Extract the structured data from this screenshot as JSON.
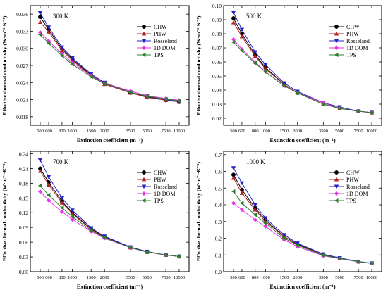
{
  "chart_data": [
    {
      "type": "line",
      "annotation": "300 K",
      "xlabel": "Extinction coefficient (m⁻¹)",
      "ylabel": "Effective thermal conductivity (W·m⁻¹·K⁻¹)",
      "x_scale": "log",
      "x": [
        500,
        600,
        800,
        1000,
        1500,
        2000,
        3500,
        5000,
        7500,
        10000
      ],
      "x_tick_labels": [
        "500",
        "600",
        "800",
        "1000",
        "1500",
        "2000",
        "3500",
        "5000",
        "7500",
        "10000"
      ],
      "ylim": [
        0.0165,
        0.0375
      ],
      "y_ticks": [
        "0.018",
        "0.021",
        "0.024",
        "0.027",
        "0.030",
        "0.033",
        "0.036"
      ],
      "legend_position": "top-right",
      "series": [
        {
          "name": "CHW",
          "color": "#000000",
          "marker": "circle",
          "values": [
            0.0355,
            0.0333,
            0.0299,
            0.0281,
            0.0253,
            0.0239,
            0.0222,
            0.0215,
            0.0209,
            0.0206
          ]
        },
        {
          "name": "PHW",
          "color": "#b22222",
          "marker": "triangle-up",
          "values": [
            0.0346,
            0.0329,
            0.0296,
            0.0279,
            0.0252,
            0.0237,
            0.0222,
            0.0214,
            0.0209,
            0.0206
          ]
        },
        {
          "name": "Rosseland",
          "color": "#2020c8",
          "marker": "triangle-down",
          "values": [
            0.0362,
            0.0337,
            0.0302,
            0.0283,
            0.0255,
            0.024,
            0.0223,
            0.0216,
            0.021,
            0.0207
          ]
        },
        {
          "name": "1D DOM",
          "color": "#e632e6",
          "marker": "diamond",
          "values": [
            0.0328,
            0.0313,
            0.029,
            0.0275,
            0.0252,
            0.0239,
            0.0225,
            0.0217,
            0.0212,
            0.0209
          ]
        },
        {
          "name": "TPS",
          "color": "#2e7d32",
          "marker": "triangle-left",
          "values": [
            0.0324,
            0.0309,
            0.0287,
            0.0272,
            0.025,
            0.0238,
            0.0223,
            0.0216,
            0.0211,
            0.0208
          ]
        }
      ]
    },
    {
      "type": "line",
      "annotation": "500 K",
      "xlabel": "Extinction coefficient (m⁻¹)",
      "ylabel": "Effective thermal conductivity (W·m⁻¹·K⁻¹)",
      "x_scale": "log",
      "x": [
        500,
        600,
        800,
        1000,
        1500,
        2000,
        3500,
        5000,
        7500,
        10000
      ],
      "x_tick_labels": [
        "500",
        "600",
        "800",
        "1000",
        "1500",
        "2000",
        "3500",
        "5000",
        "7500",
        "10000"
      ],
      "ylim": [
        0.015,
        0.1
      ],
      "y_ticks": [
        "0.02",
        "0.03",
        "0.04",
        "0.05",
        "0.06",
        "0.07",
        "0.08",
        "0.09",
        "0.10"
      ],
      "legend_position": "top-right",
      "series": [
        {
          "name": "CHW",
          "color": "#000000",
          "marker": "circle",
          "values": [
            0.091,
            0.08,
            0.065,
            0.056,
            0.044,
            0.038,
            0.031,
            0.027,
            0.025,
            0.024
          ]
        },
        {
          "name": "PHW",
          "color": "#b22222",
          "marker": "triangle-up",
          "values": [
            0.088,
            0.078,
            0.064,
            0.055,
            0.044,
            0.038,
            0.03,
            0.027,
            0.025,
            0.024
          ]
        },
        {
          "name": "Rosseland",
          "color": "#2020c8",
          "marker": "triangle-down",
          "values": [
            0.095,
            0.083,
            0.067,
            0.058,
            0.045,
            0.039,
            0.031,
            0.028,
            0.025,
            0.024
          ]
        },
        {
          "name": "1D DOM",
          "color": "#e632e6",
          "marker": "diamond",
          "values": [
            0.076,
            0.069,
            0.06,
            0.053,
            0.043,
            0.038,
            0.031,
            0.027,
            0.025,
            0.024
          ]
        },
        {
          "name": "TPS",
          "color": "#2e7d32",
          "marker": "triangle-left",
          "values": [
            0.074,
            0.068,
            0.059,
            0.053,
            0.043,
            0.038,
            0.03,
            0.027,
            0.025,
            0.024
          ]
        }
      ]
    },
    {
      "type": "line",
      "annotation": "700 K",
      "xlabel": "Extinction coefficient (m⁻¹)",
      "ylabel": "Effective thermal conductivity (W·m⁻¹·K⁻¹)",
      "x_scale": "log",
      "x": [
        500,
        600,
        800,
        1000,
        1500,
        2000,
        3500,
        5000,
        7500,
        10000
      ],
      "x_tick_labels": [
        "500",
        "600",
        "800",
        "1000",
        "1500",
        "2000",
        "3500",
        "5000",
        "7500",
        "10000"
      ],
      "ylim": [
        0.0,
        0.245
      ],
      "y_ticks": [
        "0.00",
        "0.03",
        "0.06",
        "0.09",
        "0.12",
        "0.15",
        "0.18",
        "0.21",
        "0.24"
      ],
      "legend_position": "top-right",
      "series": [
        {
          "name": "CHW",
          "color": "#000000",
          "marker": "circle",
          "values": [
            0.21,
            0.182,
            0.143,
            0.12,
            0.087,
            0.071,
            0.049,
            0.04,
            0.034,
            0.031
          ]
        },
        {
          "name": "PHW",
          "color": "#b22222",
          "marker": "triangle-up",
          "values": [
            0.205,
            0.177,
            0.14,
            0.118,
            0.086,
            0.07,
            0.049,
            0.04,
            0.034,
            0.031
          ]
        },
        {
          "name": "Rosseland",
          "color": "#2020c8",
          "marker": "triangle-down",
          "values": [
            0.227,
            0.193,
            0.15,
            0.125,
            0.089,
            0.072,
            0.05,
            0.041,
            0.034,
            0.031
          ]
        },
        {
          "name": "1D DOM",
          "color": "#e632e6",
          "marker": "diamond",
          "values": [
            0.163,
            0.145,
            0.122,
            0.106,
            0.082,
            0.068,
            0.049,
            0.04,
            0.034,
            0.031
          ]
        },
        {
          "name": "TPS",
          "color": "#2e7d32",
          "marker": "triangle-left",
          "values": [
            0.175,
            0.156,
            0.13,
            0.112,
            0.084,
            0.069,
            0.049,
            0.04,
            0.034,
            0.031
          ]
        }
      ]
    },
    {
      "type": "line",
      "annotation": "1000 K",
      "xlabel": "Extinction coefficient (m⁻¹)",
      "ylabel": "Effective thermal conductivity (W·m⁻¹·K⁻¹)",
      "x_scale": "log",
      "x": [
        500,
        600,
        800,
        1000,
        1500,
        2000,
        3500,
        5000,
        7500,
        10000
      ],
      "x_tick_labels": [
        "500",
        "600",
        "800",
        "1000",
        "1500",
        "2000",
        "3500",
        "5000",
        "7500",
        "10000"
      ],
      "ylim": [
        0.0,
        0.72
      ],
      "y_ticks": [
        "0.0",
        "0.1",
        "0.2",
        "0.3",
        "0.4",
        "0.5",
        "0.6",
        "0.7"
      ],
      "legend_position": "top-right",
      "series": [
        {
          "name": "CHW",
          "color": "#000000",
          "marker": "circle",
          "values": [
            0.58,
            0.49,
            0.38,
            0.31,
            0.21,
            0.165,
            0.1,
            0.08,
            0.06,
            0.05
          ]
        },
        {
          "name": "PHW",
          "color": "#b22222",
          "marker": "triangle-up",
          "values": [
            0.56,
            0.47,
            0.37,
            0.3,
            0.21,
            0.16,
            0.1,
            0.08,
            0.06,
            0.05
          ]
        },
        {
          "name": "Rosseland",
          "color": "#2020c8",
          "marker": "triangle-down",
          "values": [
            0.62,
            0.53,
            0.4,
            0.32,
            0.22,
            0.17,
            0.105,
            0.082,
            0.061,
            0.051
          ]
        },
        {
          "name": "1D DOM",
          "color": "#e632e6",
          "marker": "diamond",
          "values": [
            0.41,
            0.37,
            0.31,
            0.27,
            0.19,
            0.15,
            0.095,
            0.078,
            0.059,
            0.05
          ]
        },
        {
          "name": "TPS",
          "color": "#2e7d32",
          "marker": "triangle-left",
          "values": [
            0.48,
            0.41,
            0.34,
            0.29,
            0.2,
            0.158,
            0.098,
            0.079,
            0.06,
            0.05
          ]
        }
      ]
    }
  ]
}
